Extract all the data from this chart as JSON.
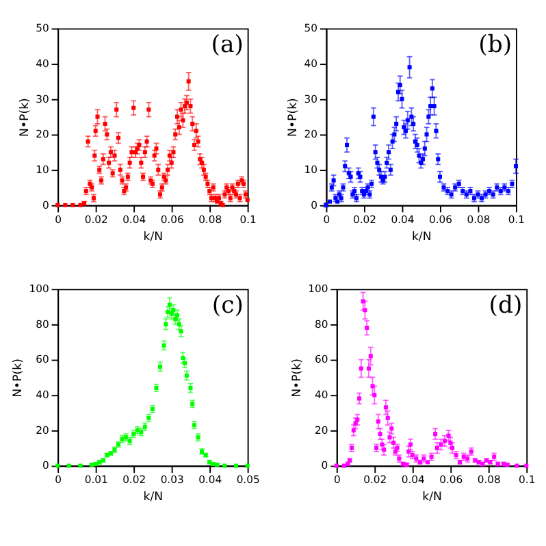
{
  "chart_data": [
    {
      "type": "scatter",
      "xlabel": "k/N",
      "ylabel": "N•P(k)",
      "annotations": [
        "(a)"
      ],
      "xlim": [
        0,
        0.1
      ],
      "xticks": [
        0,
        0.02,
        0.04,
        0.06,
        0.08,
        0.1
      ],
      "ylim": [
        0,
        50
      ],
      "yticks": [
        0,
        10,
        20,
        30,
        40,
        50
      ],
      "grid": false,
      "marker": "square",
      "series": [
        {
          "color": "#ff0000",
          "x": [
            0,
            0.004,
            0.008,
            0.012,
            0.014,
            0.015,
            0.016,
            0.017,
            0.018,
            0.019,
            0.0195,
            0.02,
            0.021,
            0.022,
            0.023,
            0.024,
            0.025,
            0.026,
            0.027,
            0.028,
            0.029,
            0.03,
            0.031,
            0.032,
            0.033,
            0.034,
            0.035,
            0.036,
            0.037,
            0.038,
            0.039,
            0.04,
            0.041,
            0.042,
            0.043,
            0.044,
            0.045,
            0.046,
            0.047,
            0.048,
            0.049,
            0.05,
            0.051,
            0.052,
            0.053,
            0.054,
            0.055,
            0.056,
            0.057,
            0.058,
            0.059,
            0.06,
            0.061,
            0.062,
            0.063,
            0.064,
            0.065,
            0.066,
            0.067,
            0.068,
            0.069,
            0.07,
            0.071,
            0.072,
            0.073,
            0.074,
            0.075,
            0.076,
            0.077,
            0.078,
            0.079,
            0.08,
            0.081,
            0.082,
            0.083,
            0.084,
            0.085,
            0.086,
            0.087,
            0.088,
            0.089,
            0.09,
            0.091,
            0.092,
            0.093,
            0.094,
            0.095,
            0.096,
            0.097,
            0.098,
            0.099,
            0.1
          ],
          "values": [
            0,
            0,
            0,
            0,
            0.5,
            4,
            18,
            6,
            5,
            2,
            14,
            21,
            25,
            10,
            7,
            13,
            23,
            20,
            12,
            15,
            9,
            14,
            27,
            19,
            10,
            7,
            4,
            5,
            8,
            12,
            15,
            27.5,
            15,
            16,
            17,
            12,
            8,
            15,
            18,
            27,
            7,
            6,
            14,
            16,
            10,
            3,
            5,
            8,
            7,
            10,
            14,
            12,
            15,
            20,
            25,
            22,
            27,
            24,
            28,
            29,
            35,
            28,
            23,
            17,
            21,
            18,
            13,
            12,
            10,
            8,
            6,
            4,
            2,
            5,
            2,
            1,
            2,
            0.5,
            0,
            3,
            5,
            4,
            2,
            5,
            4,
            3,
            6,
            2,
            7,
            6,
            3,
            1.5
          ],
          "errors": [
            null,
            null,
            null,
            null,
            0.5,
            1,
            1.5,
            1,
            1,
            1,
            1.5,
            1.5,
            2,
            1,
            1,
            1.5,
            2,
            1.5,
            1.5,
            1.5,
            1,
            1.5,
            2,
            1.5,
            1.5,
            1,
            1,
            1,
            1,
            1.5,
            1.5,
            2,
            1.5,
            1.5,
            1.5,
            1.5,
            1,
            1.5,
            1.5,
            2,
            1,
            1,
            1.5,
            1.5,
            1.5,
            1,
            1,
            1,
            1,
            1.5,
            1.5,
            1.5,
            1.5,
            1.5,
            2,
            2,
            2,
            2,
            2,
            2,
            2.5,
            2,
            2,
            1.5,
            2,
            1.5,
            1.5,
            1.5,
            1.5,
            1,
            1,
            1,
            1,
            1,
            1,
            null,
            1,
            0.5,
            null,
            1,
            1,
            1,
            1,
            1,
            1,
            1,
            1,
            1,
            1,
            1,
            1,
            null
          ]
        }
      ]
    },
    {
      "type": "scatter",
      "xlabel": "k/N",
      "ylabel": "N•P(k)",
      "annotations": [
        "(b)"
      ],
      "xlim": [
        0,
        0.1
      ],
      "xticks": [
        0,
        0.02,
        0.04,
        0.06,
        0.08,
        0.1
      ],
      "ylim": [
        0,
        50
      ],
      "yticks": [
        0,
        10,
        20,
        30,
        40,
        50
      ],
      "grid": false,
      "marker": "square",
      "series": [
        {
          "color": "#0000ff",
          "x": [
            0,
            0.002,
            0.003,
            0.004,
            0.005,
            0.006,
            0.007,
            0.008,
            0.009,
            0.01,
            0.011,
            0.012,
            0.013,
            0.014,
            0.015,
            0.016,
            0.017,
            0.018,
            0.019,
            0.02,
            0.021,
            0.022,
            0.023,
            0.024,
            0.025,
            0.026,
            0.027,
            0.028,
            0.029,
            0.03,
            0.031,
            0.032,
            0.033,
            0.034,
            0.035,
            0.036,
            0.037,
            0.038,
            0.039,
            0.04,
            0.041,
            0.042,
            0.043,
            0.044,
            0.045,
            0.046,
            0.047,
            0.048,
            0.049,
            0.05,
            0.051,
            0.052,
            0.053,
            0.054,
            0.055,
            0.056,
            0.057,
            0.058,
            0.059,
            0.06,
            0.062,
            0.064,
            0.066,
            0.068,
            0.07,
            0.072,
            0.074,
            0.076,
            0.078,
            0.08,
            0.082,
            0.084,
            0.086,
            0.088,
            0.09,
            0.092,
            0.094,
            0.096,
            0.098,
            0.1
          ],
          "values": [
            0,
            1,
            5,
            7,
            2,
            1,
            3,
            2,
            5,
            11,
            17,
            9,
            8,
            3,
            4,
            2,
            9,
            8,
            4,
            3,
            4,
            5,
            3,
            6,
            25,
            15,
            12,
            10,
            8,
            7,
            8,
            12,
            15,
            10,
            18,
            20,
            23,
            32,
            34,
            30,
            22,
            21,
            24,
            39,
            25,
            23,
            18,
            17,
            14,
            12,
            13,
            16,
            20,
            25,
            28,
            33,
            28,
            21,
            13,
            8,
            5,
            4,
            3,
            5,
            6,
            4,
            3,
            4,
            2,
            3,
            2,
            3,
            4,
            3,
            5,
            4,
            5,
            4,
            6,
            11
          ],
          "errors": [
            0.5,
            null,
            1,
            1.5,
            1,
            null,
            1,
            1,
            1,
            1.5,
            2,
            1.5,
            1.5,
            1,
            1,
            1,
            1.5,
            1.5,
            1,
            1,
            1,
            1,
            1,
            1,
            2.5,
            2,
            1.5,
            1.5,
            1.5,
            1,
            1.5,
            1.5,
            2,
            1.5,
            2,
            2,
            2,
            2.5,
            2.5,
            2.5,
            2,
            2,
            2.5,
            3,
            2.5,
            2,
            2,
            2,
            2,
            1.5,
            1.5,
            2,
            2,
            2,
            2.5,
            2.5,
            2.5,
            2,
            1.5,
            1.5,
            1,
            1,
            1,
            1,
            1,
            1,
            1,
            1,
            1,
            1,
            1,
            1,
            1,
            1,
            1,
            1,
            1,
            1,
            1,
            2
          ]
        }
      ]
    },
    {
      "type": "scatter",
      "xlabel": "k/N",
      "ylabel": "N•P(k)",
      "annotations": [
        "(c)"
      ],
      "xlim": [
        0,
        0.05
      ],
      "xticks": [
        0,
        0.01,
        0.02,
        0.03,
        0.04,
        0.05
      ],
      "ylim": [
        0,
        100
      ],
      "yticks": [
        0,
        20,
        40,
        60,
        80,
        100
      ],
      "grid": false,
      "marker": "square",
      "series": [
        {
          "color": "#00ff00",
          "x": [
            0,
            0.003,
            0.006,
            0.009,
            0.01,
            0.011,
            0.012,
            0.013,
            0.014,
            0.015,
            0.016,
            0.017,
            0.018,
            0.019,
            0.02,
            0.021,
            0.022,
            0.023,
            0.024,
            0.025,
            0.026,
            0.027,
            0.028,
            0.0285,
            0.029,
            0.0295,
            0.03,
            0.0305,
            0.031,
            0.0315,
            0.032,
            0.0325,
            0.033,
            0.0335,
            0.034,
            0.035,
            0.0355,
            0.036,
            0.037,
            0.038,
            0.039,
            0.04,
            0.041,
            0.042,
            0.044,
            0.047,
            0.05
          ],
          "values": [
            0,
            0,
            0,
            0.5,
            1,
            2,
            3,
            6,
            7,
            9,
            12,
            15,
            16,
            14,
            18,
            20,
            19,
            22,
            27,
            32,
            44,
            56,
            68,
            80,
            87,
            91,
            86,
            88,
            83,
            85,
            80,
            76,
            61,
            58,
            51,
            44,
            35,
            23,
            16,
            8,
            6,
            2,
            1,
            0.5,
            0,
            0,
            0
          ],
          "errors": [
            null,
            null,
            null,
            0.5,
            0.5,
            1,
            1,
            1,
            1,
            1.5,
            1.5,
            2,
            2,
            2,
            2,
            2,
            2,
            2,
            2,
            2,
            2,
            2.5,
            2.5,
            3,
            3,
            4,
            3,
            3,
            3,
            3,
            3,
            3,
            3,
            2.5,
            2.5,
            2.5,
            2,
            2,
            2,
            1.5,
            1,
            1,
            0.5,
            0.5,
            null,
            null,
            null
          ]
        }
      ]
    },
    {
      "type": "scatter",
      "xlabel": "k/N",
      "ylabel": "N•P(k)",
      "annotations": [
        "(d)"
      ],
      "xlim": [
        0,
        0.1
      ],
      "xticks": [
        0,
        0.02,
        0.04,
        0.06,
        0.08,
        0.1
      ],
      "ylim": [
        0,
        100
      ],
      "yticks": [
        0,
        20,
        40,
        60,
        80,
        100
      ],
      "grid": false,
      "marker": "square",
      "series": [
        {
          "color": "#ff00ff",
          "x": [
            0,
            0.004,
            0.006,
            0.007,
            0.008,
            0.009,
            0.01,
            0.011,
            0.012,
            0.013,
            0.014,
            0.015,
            0.016,
            0.017,
            0.018,
            0.019,
            0.02,
            0.021,
            0.022,
            0.023,
            0.024,
            0.025,
            0.026,
            0.027,
            0.028,
            0.029,
            0.03,
            0.031,
            0.032,
            0.033,
            0.035,
            0.037,
            0.038,
            0.039,
            0.04,
            0.042,
            0.044,
            0.046,
            0.048,
            0.05,
            0.052,
            0.053,
            0.055,
            0.057,
            0.059,
            0.06,
            0.061,
            0.063,
            0.065,
            0.067,
            0.069,
            0.071,
            0.073,
            0.075,
            0.077,
            0.079,
            0.081,
            0.083,
            0.085,
            0.088,
            0.09,
            0.095,
            0.1
          ],
          "values": [
            0,
            0,
            1,
            3,
            10,
            20,
            24,
            26,
            38,
            55,
            93,
            88,
            78,
            55,
            62,
            45,
            40,
            10,
            25,
            18,
            12,
            9,
            33,
            27,
            16,
            21,
            13,
            8,
            10,
            4,
            1,
            0.5,
            8,
            12,
            6,
            4,
            2,
            4,
            2,
            5,
            18,
            10,
            12,
            14,
            17,
            13,
            10,
            6,
            2,
            5,
            4,
            8,
            3,
            2,
            1,
            3,
            2,
            5,
            1,
            1,
            0.5,
            0,
            0
          ],
          "errors": [
            null,
            null,
            1,
            1,
            2,
            3,
            3,
            3,
            3,
            5,
            5,
            5,
            4,
            5,
            5,
            5,
            5,
            2,
            4,
            3,
            3,
            3,
            4,
            4,
            3,
            3,
            3,
            2,
            2,
            2,
            1,
            1,
            3,
            3,
            2,
            2,
            1,
            2,
            null,
            2,
            3,
            3,
            3,
            3,
            3,
            3,
            3,
            2,
            1,
            2,
            2,
            2,
            1,
            1,
            1,
            1,
            1,
            2,
            1,
            1,
            0.5,
            null,
            null
          ]
        }
      ]
    }
  ]
}
